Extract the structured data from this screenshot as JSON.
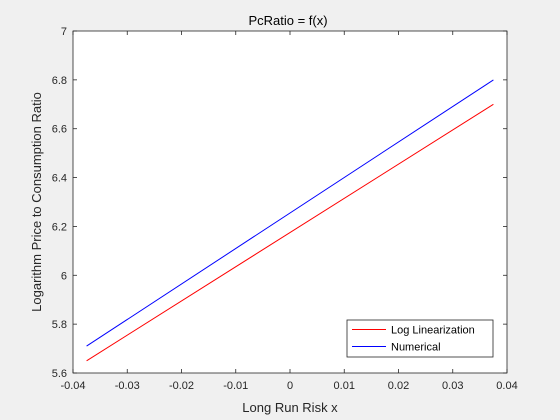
{
  "chart_data": {
    "type": "line",
    "title": "PcRatio = f(x)",
    "xlabel": "Long Run Risk x",
    "ylabel": "Logarithm Price to Consumption Ratio",
    "xlim": [
      -0.04,
      0.04
    ],
    "ylim": [
      5.6,
      7.0
    ],
    "xticks": [
      -0.04,
      -0.03,
      -0.02,
      -0.01,
      0,
      0.01,
      0.02,
      0.03,
      0.04
    ],
    "xtick_labels": [
      "-0.04",
      "-0.03",
      "-0.02",
      "-0.01",
      "0",
      "0.01",
      "0.02",
      "0.03",
      "0.04"
    ],
    "yticks": [
      5.6,
      5.8,
      6.0,
      6.2,
      6.4,
      6.6,
      6.8,
      7.0
    ],
    "ytick_labels": [
      "5.6",
      "5.8",
      "6",
      "6.2",
      "6.4",
      "6.6",
      "6.8",
      "7"
    ],
    "grid": false,
    "legend_position": "bottom-right",
    "series": [
      {
        "name": "Log Linearization",
        "color": "#ff0000",
        "x": [
          -0.0375,
          0.0375
        ],
        "y": [
          5.65,
          6.7
        ]
      },
      {
        "name": "Numerical",
        "color": "#0000ff",
        "x": [
          -0.0375,
          0.0375
        ],
        "y": [
          5.71,
          6.8
        ]
      }
    ]
  }
}
